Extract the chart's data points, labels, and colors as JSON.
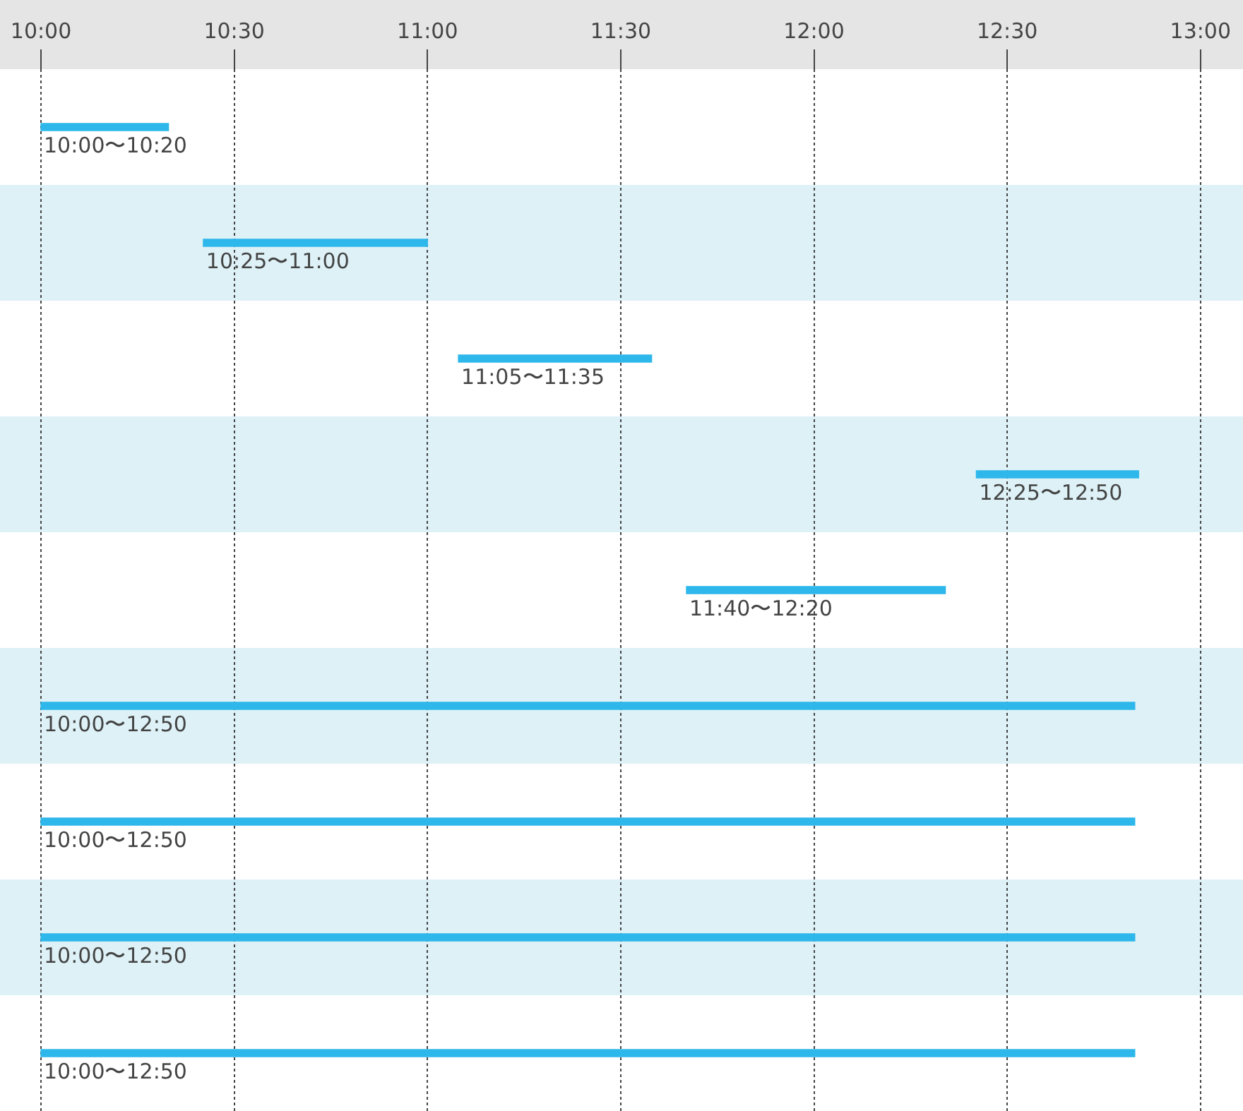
{
  "chart_data": {
    "type": "bar",
    "orientation": "horizontal",
    "categories": [
      null,
      null,
      null,
      null,
      null,
      null,
      null,
      null,
      null
    ],
    "values": [
      0.33,
      0.58,
      0.5,
      0.42,
      0.67,
      2.83,
      2.83,
      2.83,
      2.83
    ],
    "base": [
      10,
      10.42,
      11.08,
      12.42,
      11.67,
      10,
      10,
      10,
      10
    ],
    "color": "#2db7ea",
    "value_labels": [
      "10:00〜10:20",
      "10:25〜11:00",
      "11:05〜11:35",
      "12:25〜12:50",
      "11:40〜12:20",
      "10:00〜12:50",
      "10:00〜12:50",
      "10:00〜12:50",
      "10:00〜12:50"
    ],
    "xlim": [
      9.894,
      13.11
    ],
    "xticks": [
      {
        "value": 10,
        "label": "10:00"
      },
      {
        "value": 10.5,
        "label": "10:30"
      },
      {
        "value": 11,
        "label": "11:00"
      },
      {
        "value": 11.5,
        "label": "11:30"
      },
      {
        "value": 12,
        "label": "12:00"
      },
      {
        "value": 12.5,
        "label": "12:30"
      },
      {
        "value": 13,
        "label": "13:00"
      }
    ],
    "grid": "x",
    "tick_labels": "x"
  }
}
